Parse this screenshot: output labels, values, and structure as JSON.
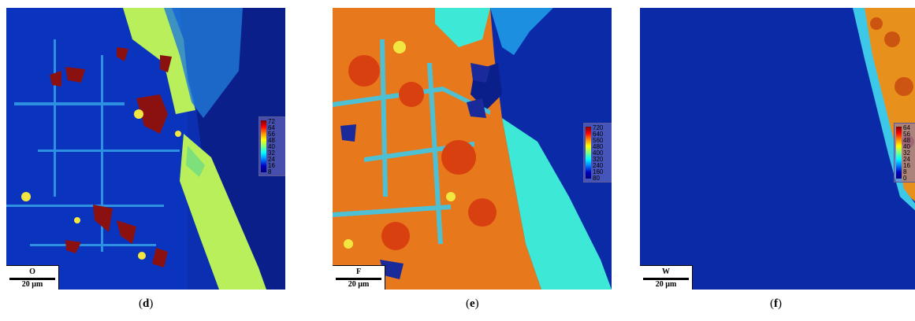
{
  "panels": [
    {
      "id": "d",
      "caption_open": "(",
      "caption_letter": "d",
      "caption_close": ")",
      "element": "O",
      "scale_length": "20 µm",
      "colorbar_ticks": [
        "72",
        "64",
        "56",
        "48",
        "40",
        "32",
        "24",
        "16",
        "8"
      ],
      "colorbar_unit": "counts"
    },
    {
      "id": "e",
      "caption_open": "(",
      "caption_letter": "e",
      "caption_close": ")",
      "element": "F",
      "scale_length": "20 µm",
      "colorbar_ticks": [
        "720",
        "640",
        "560",
        "480",
        "400",
        "320",
        "240",
        "160",
        "80"
      ],
      "colorbar_unit": "counts"
    },
    {
      "id": "f",
      "caption_open": "(",
      "caption_letter": "f",
      "caption_close": ")",
      "element": "W",
      "scale_length": "20 µm",
      "colorbar_ticks": [
        "64",
        "56",
        "48",
        "40",
        "32",
        "24",
        "16",
        "8",
        "0"
      ],
      "colorbar_unit": "counts"
    }
  ],
  "colors": {
    "background": "#0a2aa8",
    "low": "#00007f",
    "mid": "#00ffff",
    "high": "#7f0000"
  }
}
